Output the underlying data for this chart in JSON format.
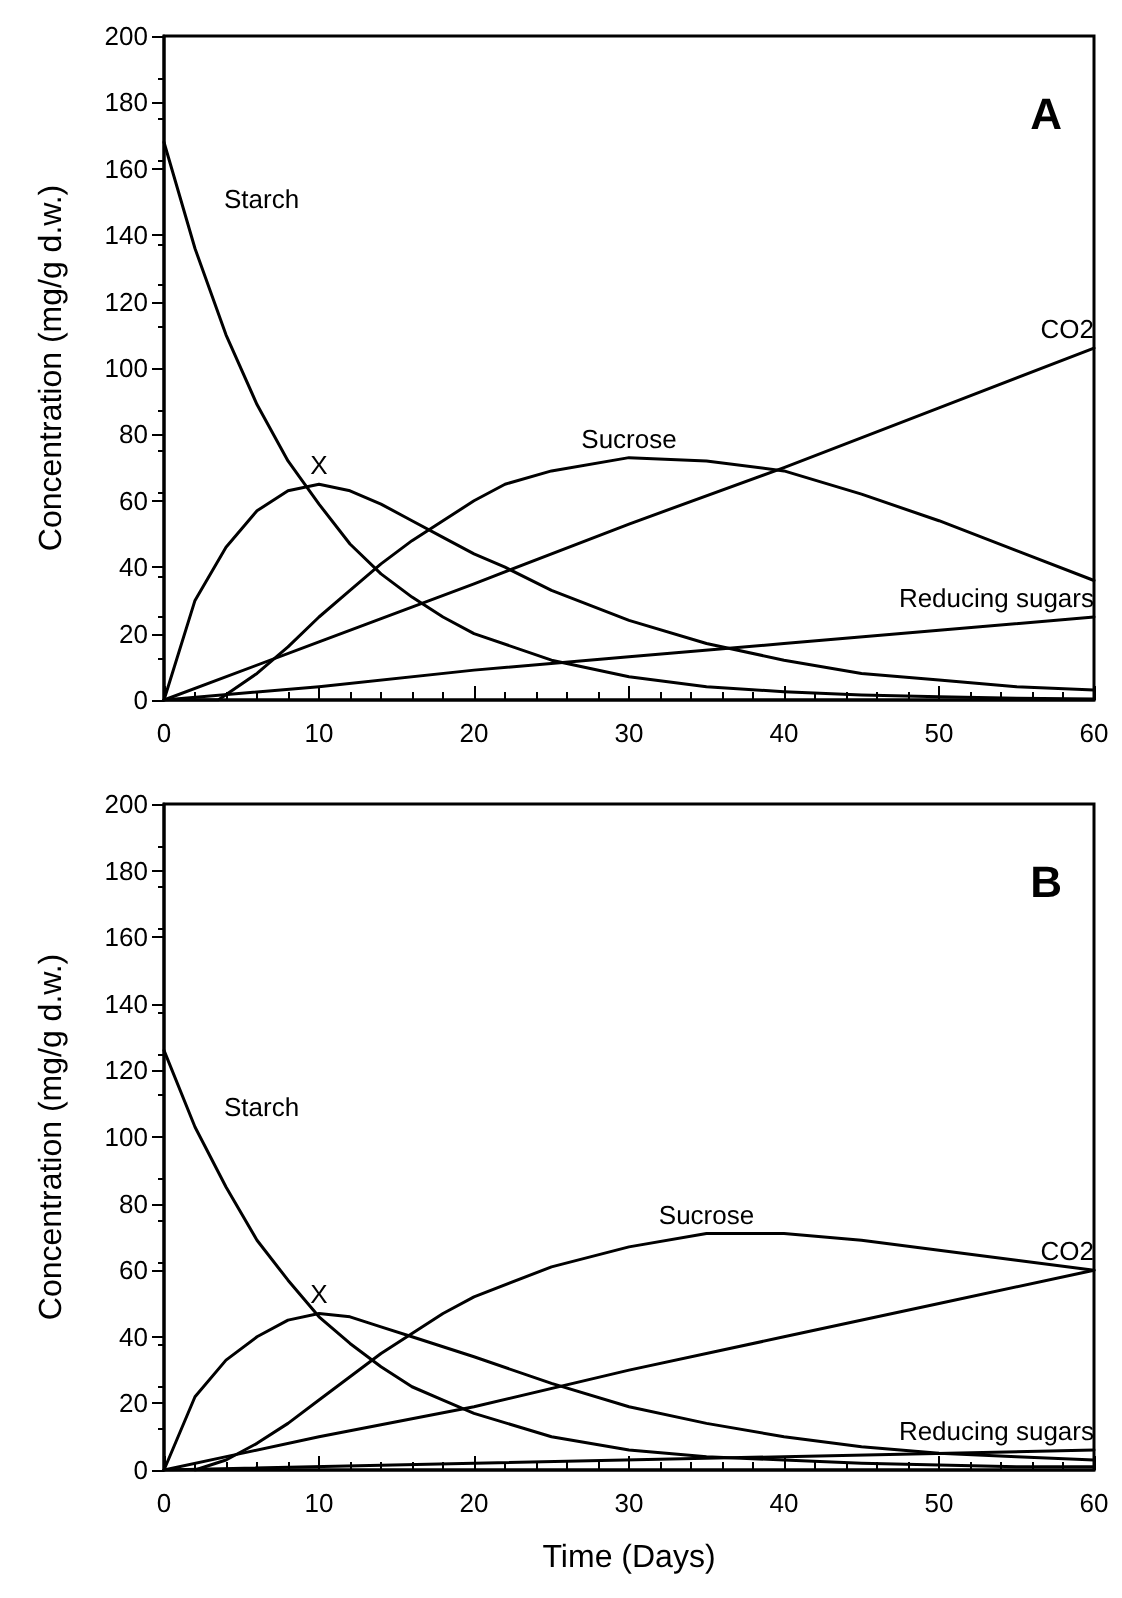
{
  "chart_data": [
    {
      "type": "line",
      "ylabel": "Concentration (mg/g d.w.)",
      "annotations": [
        "A"
      ],
      "xlim": [
        0,
        60
      ],
      "xticks": [
        0,
        10,
        20,
        30,
        40,
        50,
        60
      ],
      "ylim": [
        0,
        200
      ],
      "yticks": [
        0,
        20,
        40,
        60,
        80,
        100,
        120,
        140,
        160,
        180,
        200
      ],
      "marker": "none",
      "line_style": "solid",
      "grid": false,
      "series": [
        {
          "name": "Starch",
          "color": "#000000",
          "x": [
            0,
            2,
            4,
            6,
            8,
            10,
            12,
            14,
            16,
            18,
            20,
            25,
            30,
            35,
            40,
            45,
            50,
            55,
            60
          ],
          "values": [
            168,
            136,
            110,
            89,
            72,
            59,
            47,
            38,
            31,
            25,
            20,
            12,
            7,
            4,
            2.5,
            1.5,
            1,
            0.5,
            0.3
          ]
        },
        {
          "name": "X",
          "color": "#000000",
          "x": [
            0,
            2,
            4,
            6,
            8,
            10,
            12,
            14,
            16,
            18,
            20,
            22,
            25,
            30,
            35,
            40,
            45,
            50,
            55,
            60
          ],
          "values": [
            0,
            30,
            46,
            57,
            63,
            65,
            63,
            59,
            54,
            49,
            44,
            40,
            33,
            24,
            17,
            12,
            8,
            6,
            4,
            3
          ]
        },
        {
          "name": "Sucrose",
          "color": "#000000",
          "x": [
            0,
            3.5,
            6,
            8,
            10,
            12,
            14,
            16,
            18,
            20,
            22,
            25,
            30,
            35,
            40,
            45,
            50,
            55,
            60
          ],
          "values": [
            0,
            0,
            8,
            16,
            25,
            33,
            41,
            48,
            54,
            60,
            65,
            69,
            73,
            72,
            69,
            62,
            54,
            45,
            36
          ]
        },
        {
          "name": "CO2",
          "color": "#000000",
          "x": [
            0,
            10,
            20,
            30,
            40,
            50,
            60
          ],
          "values": [
            0,
            17.5,
            35,
            53,
            70,
            88,
            106
          ]
        },
        {
          "name": "Reducing sugars",
          "color": "#000000",
          "x": [
            0,
            10,
            20,
            30,
            40,
            50,
            60
          ],
          "values": [
            0,
            4,
            9,
            13,
            17,
            21,
            25
          ]
        }
      ]
    },
    {
      "type": "line",
      "xlabel": "Time (Days)",
      "ylabel": "Concentration (mg/g d.w.)",
      "annotations": [
        "B"
      ],
      "xlim": [
        0,
        60
      ],
      "xticks": [
        0,
        10,
        20,
        30,
        40,
        50,
        60
      ],
      "ylim": [
        0,
        200
      ],
      "yticks": [
        0,
        20,
        40,
        60,
        80,
        100,
        120,
        140,
        160,
        180,
        200
      ],
      "marker": "none",
      "line_style": "solid",
      "grid": false,
      "series": [
        {
          "name": "Starch",
          "color": "#000000",
          "x": [
            0,
            2,
            4,
            6,
            8,
            10,
            12,
            14,
            16,
            18,
            20,
            25,
            30,
            35,
            40,
            45,
            50,
            55,
            60
          ],
          "values": [
            126,
            103,
            85,
            69,
            57,
            46,
            38,
            31,
            25,
            21,
            17,
            10,
            6,
            4,
            3,
            2,
            1.5,
            1,
            1
          ]
        },
        {
          "name": "X",
          "color": "#000000",
          "x": [
            0,
            2,
            4,
            6,
            8,
            10,
            12,
            14,
            16,
            18,
            20,
            25,
            30,
            35,
            40,
            45,
            50,
            55,
            60
          ],
          "values": [
            0,
            22,
            33,
            40,
            45,
            47,
            46,
            43,
            40,
            37,
            34,
            26,
            19,
            14,
            10,
            7,
            5,
            4,
            3
          ]
        },
        {
          "name": "Sucrose",
          "color": "#000000",
          "x": [
            2,
            4,
            6,
            8,
            10,
            12,
            14,
            16,
            18,
            20,
            25,
            30,
            35,
            40,
            45,
            50,
            55,
            60
          ],
          "values": [
            0,
            3,
            8,
            14,
            21,
            28,
            35,
            41,
            47,
            52,
            61,
            67,
            71,
            71,
            69,
            66,
            63,
            60
          ]
        },
        {
          "name": "CO2",
          "color": "#000000",
          "x": [
            0,
            5,
            10,
            20,
            30,
            40,
            50,
            60
          ],
          "values": [
            0,
            5,
            10,
            19,
            30,
            40,
            50,
            60
          ]
        },
        {
          "name": "Reducing sugars",
          "color": "#000000",
          "x": [
            0,
            20,
            40,
            60
          ],
          "values": [
            0,
            2,
            4,
            6
          ]
        }
      ]
    }
  ]
}
